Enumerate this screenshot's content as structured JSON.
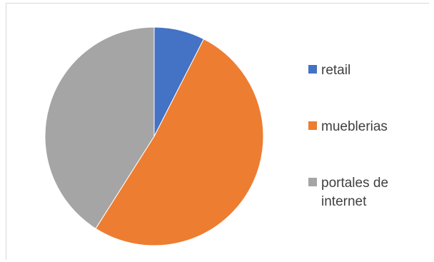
{
  "chart_data": {
    "type": "pie",
    "title": "",
    "categories": [
      "retail",
      "mueblerias",
      "portales de internet"
    ],
    "values": [
      7.5,
      51.5,
      41
    ],
    "colors": [
      "#4472c4",
      "#ed7d31",
      "#a5a5a5"
    ],
    "legend": "right",
    "start_angle": "12 o'clock",
    "direction": "clockwise"
  }
}
